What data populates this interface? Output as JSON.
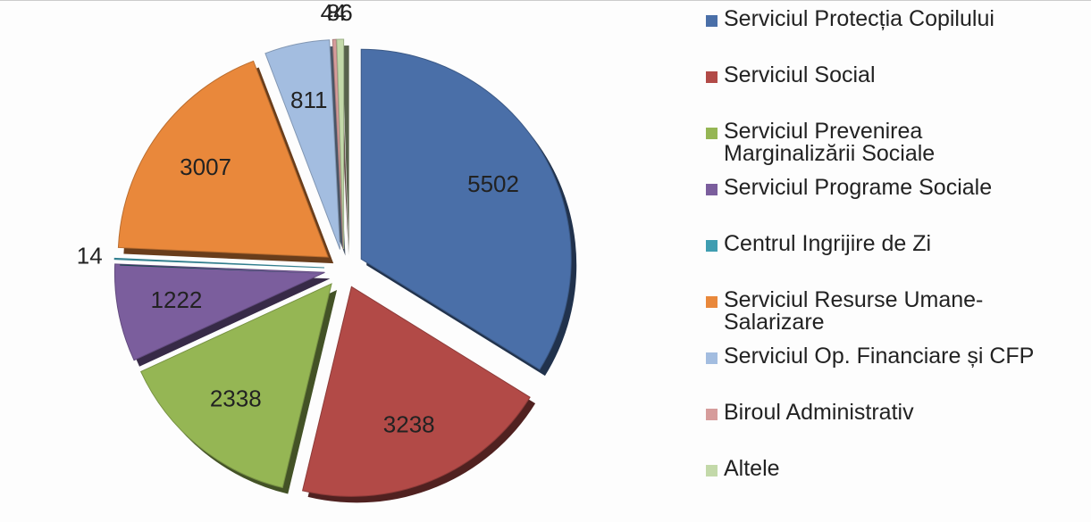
{
  "chart_data": {
    "type": "pie",
    "categories": [
      "Serviciul Protecția Copilului",
      "Serviciul Social",
      "Serviciul Prevenirea Marginalizării Sociale",
      "Serviciul Programe Sociale",
      "Centrul Ingrijire de Zi",
      "Serviciul Resurse Umane-Salarizare",
      "Serviciul Op. Financiare și CFP",
      "Biroul Administrativ",
      "Altele"
    ],
    "values": [
      5502,
      3238,
      2338,
      1222,
      14,
      3007,
      811,
      44,
      86
    ],
    "colors": [
      "#4a6fa8",
      "#b24a47",
      "#95b654",
      "#7b5e9d",
      "#3f9db1",
      "#e9883b",
      "#a3bde0",
      "#d69c9b",
      "#c3d9a9"
    ]
  }
}
